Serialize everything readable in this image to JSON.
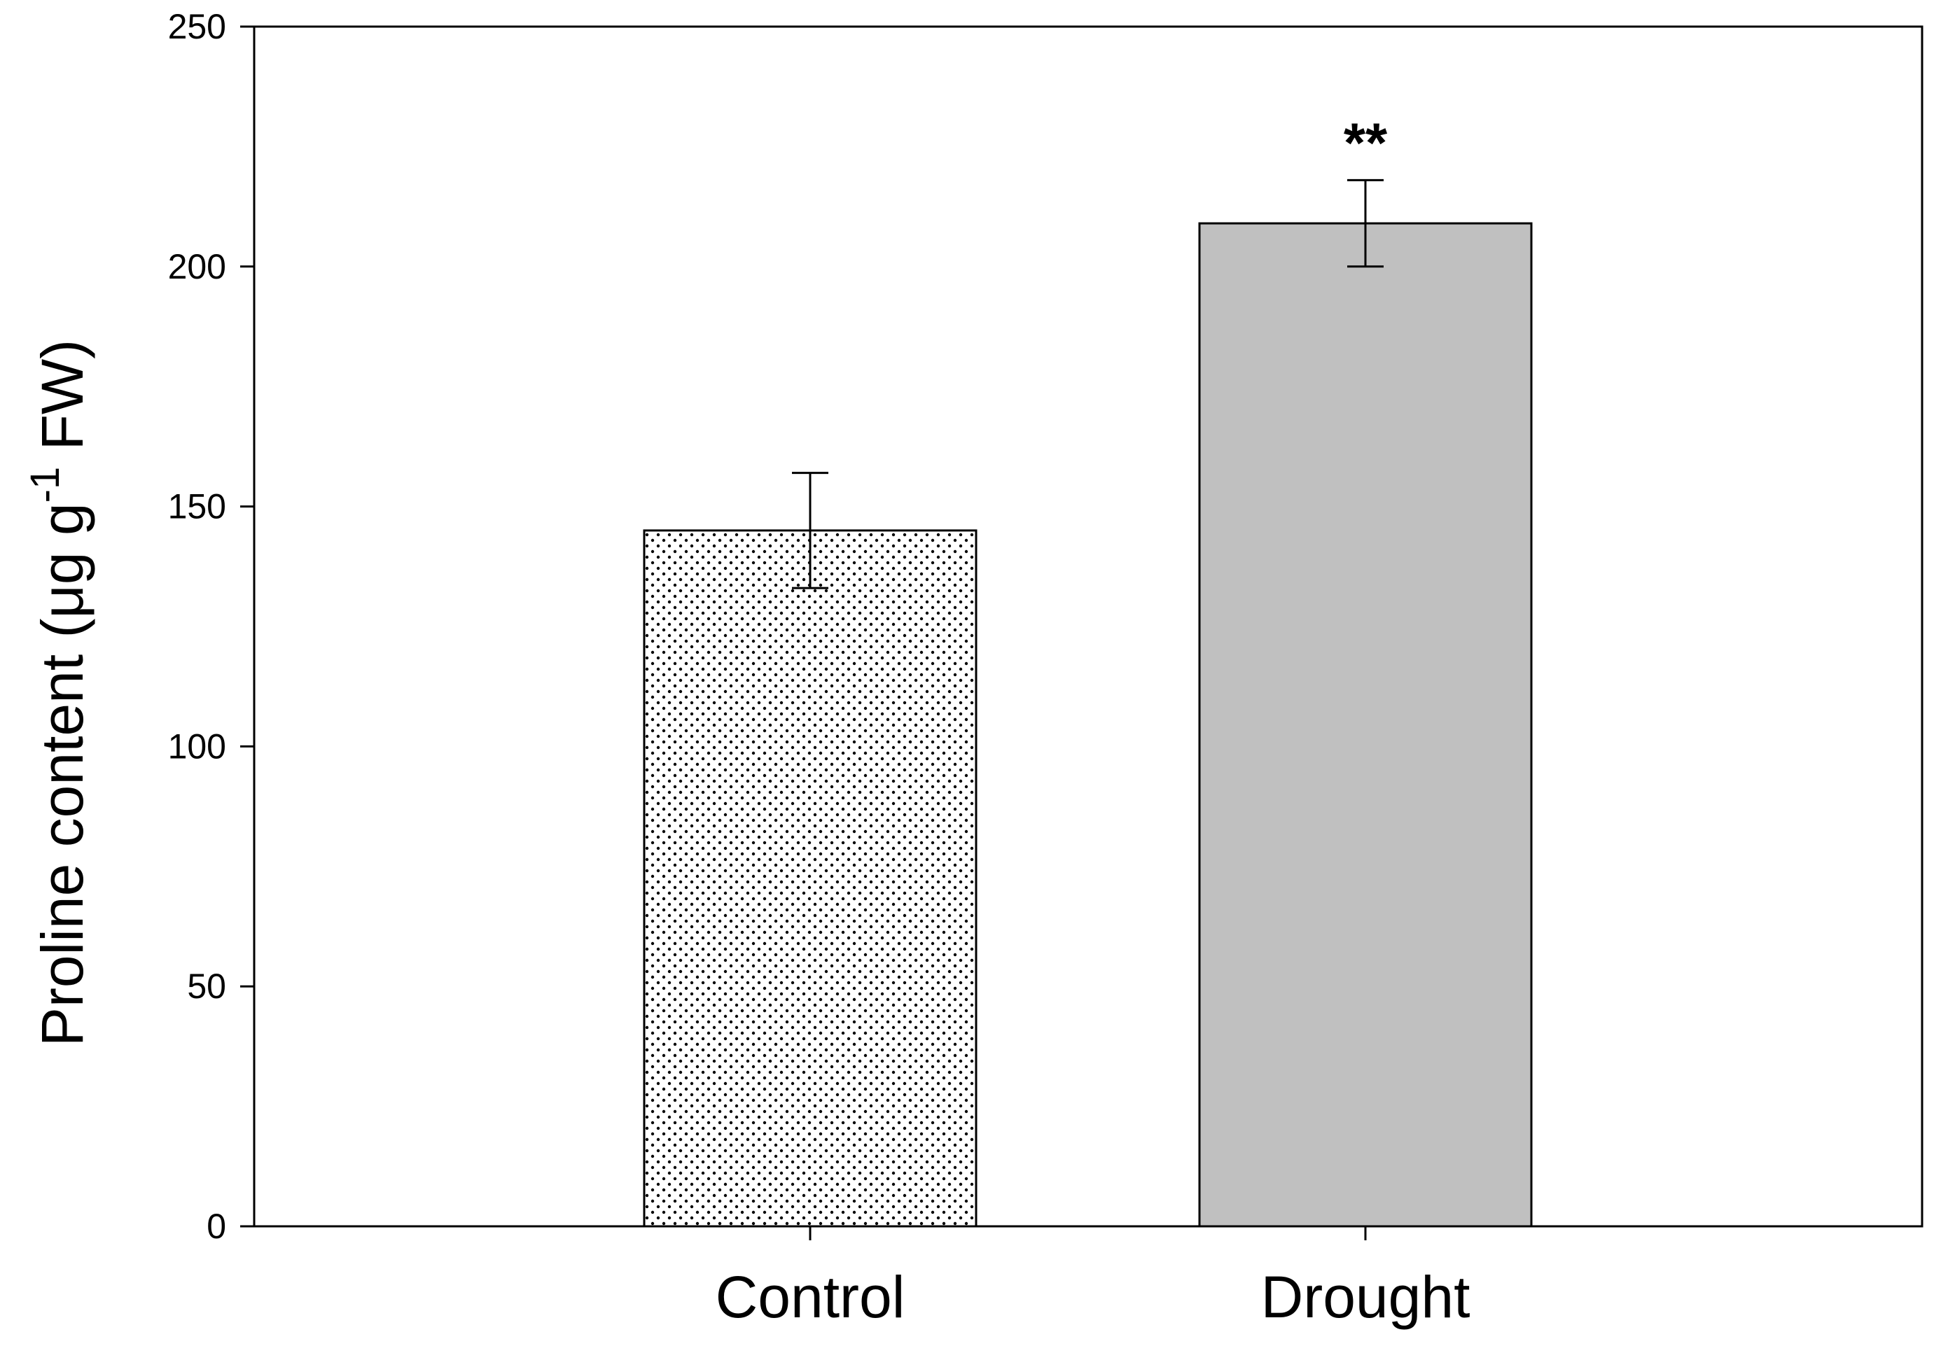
{
  "chart_data": {
    "type": "bar",
    "title": "",
    "xlabel": "",
    "ylabel": {
      "main": "Proline content (μg g",
      "superscript": "-1",
      "suffix": " FW)"
    },
    "ylim": [
      0,
      250
    ],
    "yticks": [
      0,
      50,
      100,
      150,
      200,
      250
    ],
    "ytick_labels": [
      "0",
      "50",
      "100",
      "150",
      "200",
      "250"
    ],
    "categories": [
      "Control",
      "Drought"
    ],
    "values": [
      145,
      209
    ],
    "errors": [
      12,
      9
    ],
    "significance": [
      "",
      "**"
    ],
    "fills": [
      "dotted",
      "#c0c0c0"
    ],
    "colors": {
      "axis": "#000000",
      "dot_fill_background": "#ffffff",
      "dot_color": "#000000",
      "drought_bar": "#c0c0c0"
    }
  }
}
